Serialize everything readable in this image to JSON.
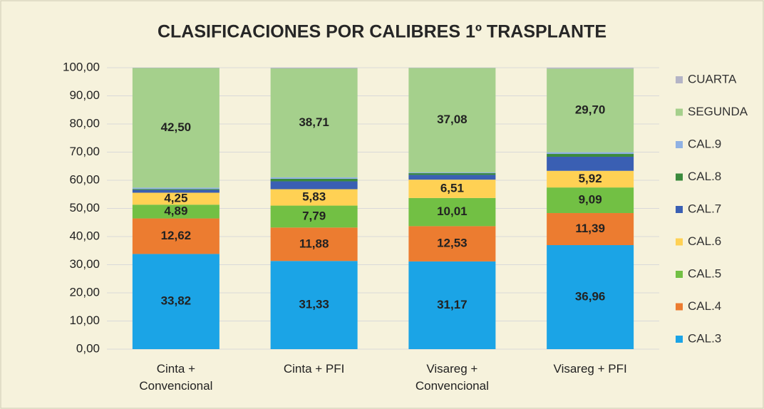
{
  "chart_data": {
    "type": "stacked_bar",
    "title": "CLASIFICACIONES POR CALIBRES 1º TRASPLANTE",
    "categories": [
      "Cinta + Convencional",
      "Cinta + PFI",
      "Visareg + Convencional",
      "Visareg + PFI"
    ],
    "series": [
      {
        "name": "CAL.3",
        "color": "#1ba4e6",
        "values": [
          33.82,
          31.33,
          31.17,
          36.96
        ],
        "value_labels": [
          "33,82",
          "31,33",
          "31,17",
          "36,96"
        ]
      },
      {
        "name": "CAL.4",
        "color": "#ec7c30",
        "values": [
          12.62,
          11.88,
          12.53,
          11.39
        ],
        "value_labels": [
          "12,62",
          "11,88",
          "12,53",
          "11,39"
        ]
      },
      {
        "name": "CAL.5",
        "color": "#72c044",
        "values": [
          4.89,
          7.79,
          10.01,
          9.09
        ],
        "value_labels": [
          "4,89",
          "7,79",
          "10,01",
          "9,09"
        ]
      },
      {
        "name": "CAL.6",
        "color": "#ffd154",
        "values": [
          4.25,
          5.83,
          6.51,
          5.92
        ],
        "value_labels": [
          "4,25",
          "5,83",
          "6,51",
          "5,92"
        ]
      },
      {
        "name": "CAL.7",
        "color": "#3a5fb3",
        "values": [
          1.0,
          2.8,
          1.7,
          5.0
        ]
      },
      {
        "name": "CAL.8",
        "color": "#3a8a3c",
        "values": [
          0.3,
          0.9,
          0.6,
          1.0
        ]
      },
      {
        "name": "CAL.9",
        "color": "#8fb1e3",
        "values": [
          0.5,
          0.5,
          0.3,
          0.6
        ]
      },
      {
        "name": "SEGUNDA",
        "color": "#a5d08c",
        "values": [
          42.5,
          38.71,
          37.08,
          29.7
        ],
        "value_labels": [
          "42,50",
          "38,71",
          "37,08",
          "29,70"
        ]
      },
      {
        "name": "CUARTA",
        "color": "#b4b4c6",
        "values": [
          0.12,
          0.26,
          0.1,
          0.34
        ]
      }
    ],
    "ylim": [
      0,
      100
    ],
    "yticks": [
      {
        "value": 0,
        "label": "0,00"
      },
      {
        "value": 10,
        "label": "10,00"
      },
      {
        "value": 20,
        "label": "20,00"
      },
      {
        "value": 30,
        "label": "30,00"
      },
      {
        "value": 40,
        "label": "40,00"
      },
      {
        "value": 50,
        "label": "50,00"
      },
      {
        "value": 60,
        "label": "60,00"
      },
      {
        "value": 70,
        "label": "70,00"
      },
      {
        "value": 80,
        "label": "80,00"
      },
      {
        "value": 90,
        "label": "90,00"
      },
      {
        "value": 100,
        "label": "100,00"
      }
    ],
    "grid": true,
    "legend": "right"
  }
}
